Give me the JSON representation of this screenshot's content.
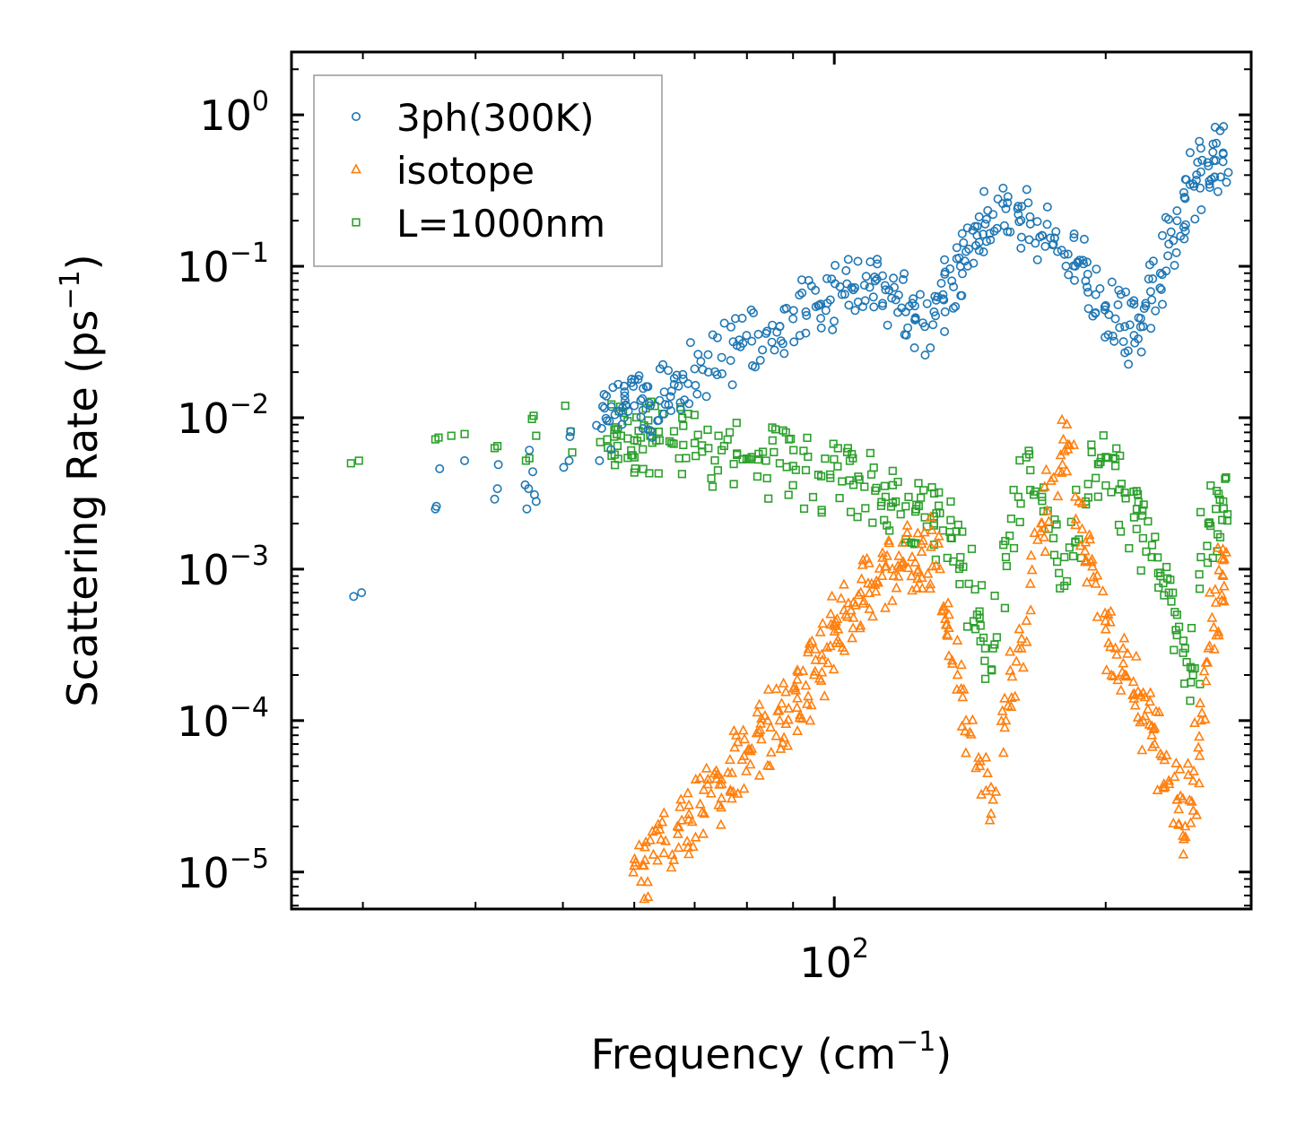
{
  "chart_data": {
    "type": "scatter",
    "xscale": "log",
    "yscale": "log",
    "xlim": [
      25,
      290
    ],
    "ylim": [
      5.7e-06,
      2.6
    ],
    "xlabel": "Frequency (cm",
    "xlabel_sup": "−1",
    "xlabel_end": ")",
    "ylabel": "Scattering Rate (ps",
    "ylabel_sup": "−1",
    "ylabel_end": ")",
    "x_tick_labels": [
      {
        "value": 100,
        "base": "10",
        "exp": "2"
      }
    ],
    "y_tick_labels": [
      {
        "value": 1,
        "base": "10",
        "exp": "0"
      },
      {
        "value": 0.1,
        "base": "10",
        "exp": "−1"
      },
      {
        "value": 0.01,
        "base": "10",
        "exp": "−2"
      },
      {
        "value": 0.001,
        "base": "10",
        "exp": "−3"
      },
      {
        "value": 0.0001,
        "base": "10",
        "exp": "−4"
      },
      {
        "value": 1e-05,
        "base": "10",
        "exp": "−5"
      }
    ],
    "legend_position": "top-left",
    "series": [
      {
        "name": "3ph(300K)",
        "marker": "circle",
        "color": "#1f77b4",
        "x": [
          29.3,
          29.9,
          36.1,
          36.2,
          36.5,
          38.9,
          42.0,
          42.3,
          42.4,
          45.4,
          45.6,
          45.8,
          45.9,
          46.3,
          46.5,
          46.7,
          50.1,
          50.8,
          50.9,
          51.0,
          54.9,
          55.2,
          56.3,
          57.7,
          58.6,
          60.0,
          61.0,
          62.5,
          64.0,
          66.0,
          68.0,
          70.0,
          72.5,
          75.0,
          78.0,
          81.0,
          84.0,
          87.0,
          90.0,
          93.0,
          96.0,
          99.0,
          102.0,
          105.0,
          108.0,
          111.0,
          114.0,
          117.0,
          120.0,
          123.0,
          126.0,
          129.0,
          132.0,
          135.0,
          138.0,
          141.0,
          144.0,
          147.0,
          150.0,
          155.0,
          160.0,
          165.0,
          170.0,
          175.0,
          180.0,
          185.0,
          190.0,
          195.0,
          200.0,
          205.0,
          210.0,
          215.0,
          220.0,
          225.0,
          230.0,
          235.0,
          240.0,
          245.0,
          250.0,
          255.0,
          260.0,
          265.0,
          270.0
        ],
        "y": [
          0.00066,
          0.0007,
          0.0025,
          0.0026,
          0.0046,
          0.0052,
          0.0029,
          0.0034,
          0.0049,
          0.0036,
          0.0025,
          0.0034,
          0.0061,
          0.0044,
          0.0031,
          0.0028,
          0.0047,
          0.0052,
          0.0075,
          0.0081,
          0.0052,
          0.0085,
          0.0095,
          0.011,
          0.013,
          0.012,
          0.013,
          0.012,
          0.013,
          0.015,
          0.018,
          0.021,
          0.02,
          0.025,
          0.03,
          0.032,
          0.036,
          0.04,
          0.045,
          0.05,
          0.055,
          0.06,
          0.065,
          0.07,
          0.075,
          0.08,
          0.07,
          0.06,
          0.05,
          0.045,
          0.04,
          0.05,
          0.065,
          0.08,
          0.1,
          0.13,
          0.16,
          0.19,
          0.22,
          0.24,
          0.22,
          0.19,
          0.16,
          0.14,
          0.12,
          0.1,
          0.08,
          0.065,
          0.055,
          0.045,
          0.04,
          0.035,
          0.04,
          0.06,
          0.09,
          0.14,
          0.2,
          0.28,
          0.35,
          0.42,
          0.46,
          0.5,
          0.55
        ]
      },
      {
        "name": "isotope",
        "marker": "triangle",
        "color": "#ff7f0e",
        "x": [
          60.0,
          61.5,
          63.0,
          65.0,
          67.0,
          69.0,
          71.0,
          73.0,
          75.0,
          77.0,
          79.0,
          81.0,
          83.0,
          85.0,
          87.0,
          89.0,
          91.0,
          93.0,
          95.0,
          97.0,
          99.0,
          101.0,
          103.0,
          105.0,
          107.0,
          110.0,
          113.0,
          116.0,
          119.0,
          122.0,
          125.0,
          128.0,
          131.0,
          134.0,
          137.0,
          140.0,
          145.0,
          150.0,
          155.0,
          160.0,
          165.0,
          170.0,
          175.0,
          180.0,
          185.0,
          190.0,
          195.0,
          200.0,
          205.0,
          210.0,
          215.0,
          220.0,
          225.0,
          230.0,
          235.0,
          240.0,
          245.0,
          250.0,
          255.0,
          260.0,
          265.0,
          270.0
        ],
        "y": [
          1.1e-05,
          1.1e-05,
          1.3e-05,
          1.6e-05,
          2e-05,
          2.4e-05,
          2.8e-05,
          3.3e-05,
          3.8e-05,
          4.5e-05,
          5.5e-05,
          6.5e-05,
          7.5e-05,
          9e-05,
          0.0001,
          0.00012,
          0.00014,
          0.00017,
          0.0002,
          0.00025,
          0.00031,
          0.0004,
          0.0005,
          0.0006,
          0.0007,
          0.0008,
          0.0009,
          0.001,
          0.0011,
          0.0012,
          0.0013,
          0.0014,
          0.001,
          0.0005,
          0.0002,
          0.0001,
          5e-05,
          3e-05,
          0.0001,
          0.0003,
          0.0008,
          0.002,
          0.004,
          0.006,
          0.003,
          0.0015,
          0.0008,
          0.0004,
          0.0003,
          0.0002,
          0.00015,
          0.0001,
          8e-05,
          6e-05,
          4e-05,
          3e-05,
          2e-05,
          4e-05,
          0.0001,
          0.0003,
          0.0006,
          0.0009
        ]
      },
      {
        "name": "L=1000nm",
        "marker": "square",
        "color": "#2ca02c",
        "x": [
          29.1,
          29.7,
          36.1,
          36.4,
          37.6,
          38.9,
          42.0,
          42.3,
          45.5,
          45.9,
          46.2,
          46.4,
          46.7,
          50.3,
          51.0,
          51.2,
          55.0,
          56.0,
          57.0,
          58.0,
          59.0,
          60.0,
          61.0,
          62.5,
          64.0,
          66.0,
          68.0,
          70.0,
          72.5,
          75.0,
          78.0,
          81.0,
          84.0,
          87.0,
          90.0,
          93.0,
          96.0,
          99.0,
          102.0,
          105.0,
          108.0,
          111.0,
          114.0,
          117.0,
          120.0,
          123.0,
          126.0,
          129.0,
          132.0,
          135.0,
          138.0,
          141.0,
          144.0,
          147.0,
          150.0,
          155.0,
          160.0,
          165.0,
          170.0,
          175.0,
          180.0,
          185.0,
          190.0,
          195.0,
          200.0,
          205.0,
          210.0,
          215.0,
          220.0,
          225.0,
          230.0,
          235.0,
          240.0,
          245.0,
          250.0,
          255.0,
          260.0,
          265.0,
          270.0
        ],
        "y": [
          0.005,
          0.0052,
          0.0072,
          0.0074,
          0.0076,
          0.0078,
          0.0063,
          0.0065,
          0.0052,
          0.0054,
          0.0098,
          0.0103,
          0.0076,
          0.012,
          0.0081,
          0.0059,
          0.0069,
          0.0072,
          0.0075,
          0.0076,
          0.0073,
          0.0071,
          0.0074,
          0.0076,
          0.0071,
          0.0068,
          0.0066,
          0.0068,
          0.0063,
          0.0061,
          0.0058,
          0.0055,
          0.0052,
          0.005,
          0.0048,
          0.0045,
          0.0042,
          0.004,
          0.0038,
          0.0036,
          0.0035,
          0.0033,
          0.003,
          0.0028,
          0.0026,
          0.0024,
          0.0022,
          0.002,
          0.0018,
          0.0016,
          0.0012,
          0.0008,
          0.0005,
          0.0003,
          0.0003,
          0.0012,
          0.003,
          0.0045,
          0.003,
          0.0016,
          0.0012,
          0.0015,
          0.0028,
          0.004,
          0.0055,
          0.0048,
          0.0032,
          0.0022,
          0.0016,
          0.0012,
          0.0009,
          0.0007,
          0.0005,
          0.0003,
          0.0002,
          0.0012,
          0.002,
          0.0025,
          0.0028
        ]
      }
    ]
  }
}
